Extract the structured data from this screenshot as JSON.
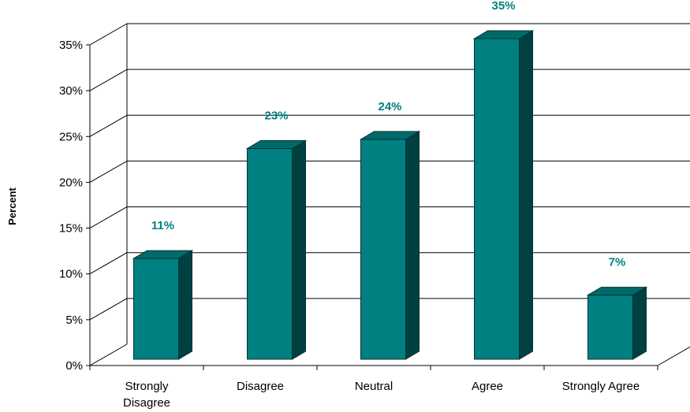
{
  "chart_data": {
    "type": "bar",
    "title": "",
    "xlabel": "",
    "ylabel": "Percent",
    "categories": [
      [
        "Strongly",
        "Disagree"
      ],
      [
        "Disagree"
      ],
      [
        "Neutral"
      ],
      [
        "Agree"
      ],
      [
        "Strongly Agree"
      ]
    ],
    "values": [
      11,
      23,
      24,
      35,
      7
    ],
    "data_labels": [
      "11%",
      "23%",
      "24%",
      "35%",
      "7%"
    ],
    "y_ticks": [
      "0%",
      "5%",
      "10%",
      "15%",
      "20%",
      "25%",
      "30%",
      "35%"
    ],
    "ylim": [
      0,
      35
    ],
    "grid": true,
    "three_d": true,
    "colors": {
      "bar_front": "#008080",
      "bar_top": "#006a6a",
      "bar_side": "#004040",
      "bar_edge": "#003333",
      "label": "#008080",
      "grid": "#000000"
    }
  }
}
